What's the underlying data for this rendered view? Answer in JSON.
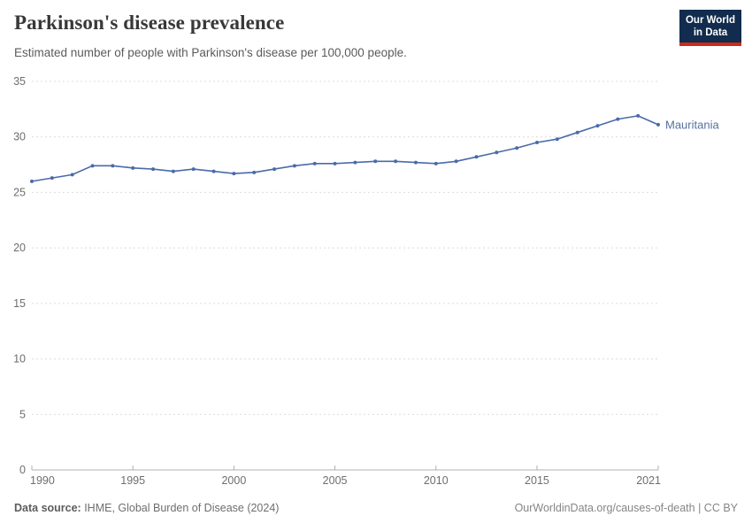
{
  "header": {
    "title": "Parkinson's disease prevalence",
    "subtitle": "Estimated number of people with Parkinson's disease per 100,000 people."
  },
  "logo": {
    "line1": "Our World",
    "line2": "in Data",
    "bg_color": "#112c4e",
    "stripe_color": "#cc2a1a"
  },
  "chart_data": {
    "type": "line",
    "title": "Parkinson's disease prevalence",
    "xlabel": "",
    "ylabel": "",
    "x": [
      1990,
      1991,
      1992,
      1993,
      1994,
      1995,
      1996,
      1997,
      1998,
      1999,
      2000,
      2001,
      2002,
      2003,
      2004,
      2005,
      2006,
      2007,
      2008,
      2009,
      2010,
      2011,
      2012,
      2013,
      2014,
      2015,
      2016,
      2017,
      2018,
      2019,
      2020,
      2021
    ],
    "series": [
      {
        "name": "Mauritania",
        "color": "#4a6ba8",
        "label_color": "#54719f",
        "values": [
          26.0,
          26.3,
          26.6,
          27.4,
          27.4,
          27.2,
          27.1,
          26.9,
          27.1,
          26.9,
          26.7,
          26.8,
          27.1,
          27.4,
          27.6,
          27.6,
          27.7,
          27.8,
          27.8,
          27.7,
          27.6,
          27.8,
          28.2,
          28.6,
          29.0,
          29.5,
          29.8,
          30.4,
          31.0,
          31.6,
          31.9,
          31.1
        ]
      }
    ],
    "xlim": [
      1990,
      2021
    ],
    "ylim": [
      0,
      35
    ],
    "yticks": [
      0,
      5,
      10,
      15,
      20,
      25,
      30,
      35
    ],
    "xticks": [
      1990,
      1995,
      2000,
      2005,
      2010,
      2015,
      2021
    ],
    "grid": "horizontal-dashed",
    "legend_position": "end-of-line-label",
    "entity_label": "Mauritania"
  },
  "footer": {
    "source_label": "Data source:",
    "source_value": " IHME, Global Burden of Disease (2024)",
    "credit": "OurWorldinData.org/causes-of-death | CC BY"
  },
  "style": {
    "grid_color": "#dcdcdc",
    "axis_color": "#b0b0b0",
    "tick_label_color": "#6e6e6e"
  }
}
